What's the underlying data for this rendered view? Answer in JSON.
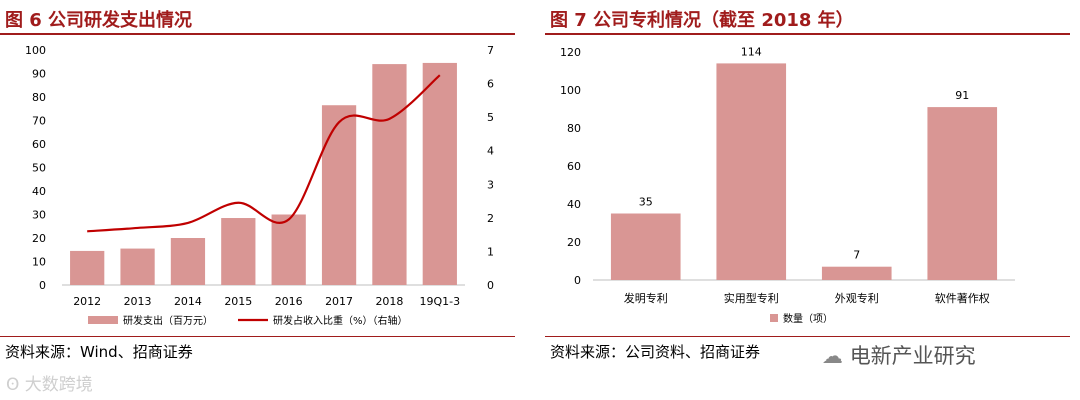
{
  "left": {
    "title": "图 6 公司研发支出情况",
    "source": "资料来源：Wind、招商证券",
    "chart_data": {
      "type": "bar",
      "categories": [
        "2012",
        "2013",
        "2014",
        "2015",
        "2016",
        "2017",
        "2018",
        "19Q1-3"
      ],
      "series": [
        {
          "name": "研发支出（百万元）",
          "type": "bar",
          "axis": "left",
          "color": "#d99694",
          "values": [
            14.5,
            15.5,
            20,
            28.5,
            30,
            76.5,
            94,
            94.5
          ]
        },
        {
          "name": "研发占收入比重（%）（右轴）",
          "type": "line",
          "axis": "right",
          "color": "#c00000",
          "values": [
            1.6,
            1.7,
            1.85,
            2.45,
            1.95,
            4.85,
            4.95,
            6.25
          ]
        }
      ],
      "ylim": [
        0,
        100
      ],
      "yticks": [
        0,
        10,
        20,
        30,
        40,
        50,
        60,
        70,
        80,
        90,
        100
      ],
      "y2lim": [
        0,
        7
      ],
      "y2ticks": [
        0,
        1,
        2,
        3,
        4,
        5,
        6,
        7
      ],
      "legend_position": "bottom",
      "grid": false
    }
  },
  "right": {
    "title": "图 7 公司专利情况（截至 2018 年）",
    "source": "资料来源：公司资料、招商证券",
    "chart_data": {
      "type": "bar",
      "categories": [
        "发明专利",
        "实用型专利",
        "外观专利",
        "软件著作权"
      ],
      "series": [
        {
          "name": "数量（项）",
          "color": "#d99694",
          "values": [
            35,
            114,
            7,
            91
          ]
        }
      ],
      "ylim": [
        0,
        120
      ],
      "yticks": [
        0,
        20,
        40,
        60,
        80,
        100,
        120
      ],
      "data_labels": true,
      "legend_position": "bottom",
      "grid": false
    }
  },
  "watermarks": {
    "left": "大数跨境",
    "right": "电新产业研究"
  }
}
